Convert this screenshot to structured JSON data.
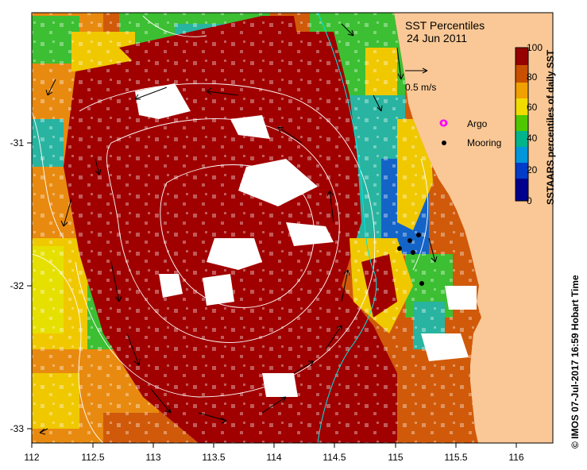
{
  "title": "SST Percentiles",
  "date": "24 Jun 2011",
  "vector_scale_label": "0.5 m/s",
  "legend": {
    "argo_label": "Argo",
    "mooring_label": "Mooring",
    "argo_color": "#ff00ff",
    "mooring_color": "#000000"
  },
  "colorbar": {
    "title": "SSTAARS percentiles of daily SST",
    "ticks": [
      "100",
      "80",
      "60",
      "40",
      "20",
      "0"
    ],
    "colors": [
      "#960000",
      "#c85000",
      "#f0a000",
      "#f0dc00",
      "#50c800",
      "#00b48c",
      "#0096dc",
      "#003cc8",
      "#00008c"
    ]
  },
  "axes": {
    "x_ticks": [
      "112",
      "112.5",
      "113",
      "113.5",
      "114",
      "114.5",
      "115",
      "115.5",
      "116"
    ],
    "y_ticks": [
      "-31",
      "-32",
      "-33"
    ]
  },
  "credit": "© IMOS 07-Jul-2017 16:59 Hobart Time",
  "colors": {
    "land": "#fac896",
    "core": "#a00000",
    "high": "#d05a0a",
    "mid": "#e88a10",
    "warm": "#f0c800",
    "green": "#3cbf32",
    "teal": "#28b4a0",
    "blue": "#1464c8",
    "navy": "#001e8c"
  }
}
